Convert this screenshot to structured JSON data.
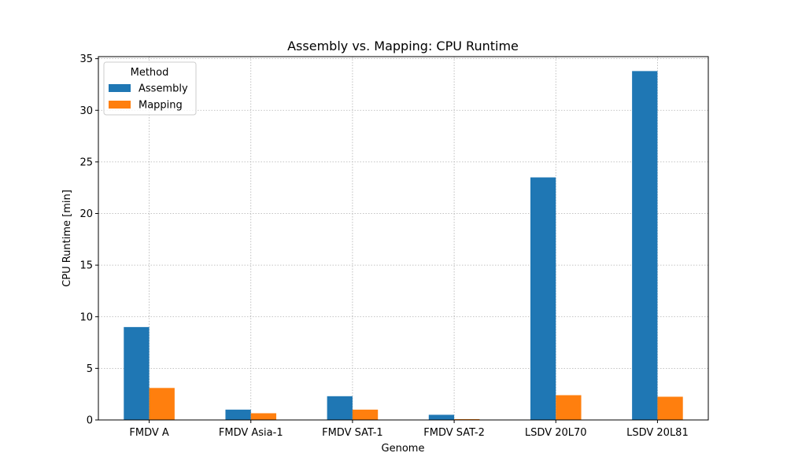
{
  "chart_data": {
    "type": "bar",
    "title": "Assembly vs. Mapping: CPU Runtime",
    "xlabel": "Genome",
    "ylabel": "CPU Runtime [min]",
    "categories": [
      "FMDV A",
      "FMDV Asia-1",
      "FMDV SAT-1",
      "FMDV SAT-2",
      "LSDV 20L70",
      "LSDV 20L81"
    ],
    "series": [
      {
        "name": "Assembly",
        "color": "#1f77b4",
        "values": [
          9.0,
          1.0,
          2.3,
          0.5,
          23.5,
          33.8
        ]
      },
      {
        "name": "Mapping",
        "color": "#ff7f0e",
        "values": [
          3.1,
          0.65,
          1.0,
          0.08,
          2.4,
          2.25
        ]
      }
    ],
    "ylim": [
      0,
      35.2
    ],
    "yticks": [
      0,
      5,
      10,
      15,
      20,
      25,
      30,
      35
    ],
    "grid": true,
    "legend": {
      "title": "Method",
      "placement": "top-left"
    }
  }
}
